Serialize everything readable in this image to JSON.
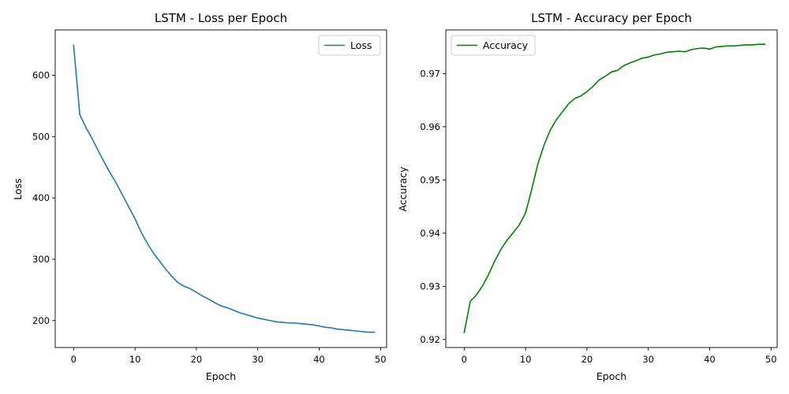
{
  "chart_data": [
    {
      "type": "line",
      "title": "LSTM - Loss per Epoch",
      "xlabel": "Epoch",
      "ylabel": "Loss",
      "xlim": [
        -3,
        51
      ],
      "ylim": [
        156,
        674
      ],
      "xticks": [
        0,
        10,
        20,
        30,
        40,
        50
      ],
      "yticks": [
        200,
        300,
        400,
        500,
        600
      ],
      "ytick_labels": [
        "200",
        "300",
        "400",
        "500",
        "600"
      ],
      "grid": false,
      "legend_position": "upper right",
      "series": [
        {
          "name": "Loss",
          "color": "#1f77b4",
          "x": [
            0,
            1,
            2,
            3,
            4,
            5,
            6,
            7,
            8,
            9,
            10,
            11,
            12,
            13,
            14,
            15,
            16,
            17,
            18,
            19,
            20,
            21,
            22,
            23,
            24,
            25,
            26,
            27,
            28,
            29,
            30,
            31,
            32,
            33,
            34,
            35,
            36,
            37,
            38,
            39,
            40,
            41,
            42,
            43,
            44,
            45,
            46,
            47,
            48,
            49
          ],
          "values": [
            649,
            536,
            515,
            497,
            477,
            458,
            440,
            423,
            404,
            385,
            366,
            344,
            326,
            310,
            297,
            284,
            272,
            262,
            256,
            252,
            246,
            240,
            235,
            229,
            224,
            221,
            217,
            213,
            210,
            207,
            204,
            202,
            200,
            198,
            197,
            196,
            196,
            195,
            194,
            193,
            191,
            189,
            188,
            186,
            185,
            184,
            183,
            182,
            181,
            181
          ]
        }
      ]
    },
    {
      "type": "line",
      "title": "LSTM - Accuracy per Epoch",
      "xlabel": "Epoch",
      "ylabel": "Accuracy",
      "xlim": [
        -3,
        51
      ],
      "ylim": [
        0.9185,
        0.9782
      ],
      "xticks": [
        0,
        10,
        20,
        30,
        40,
        50
      ],
      "yticks": [
        0.92,
        0.93,
        0.94,
        0.95,
        0.96,
        0.97
      ],
      "ytick_labels": [
        "0.92",
        "0.93",
        "0.94",
        "0.95",
        "0.96",
        "0.97"
      ],
      "grid": false,
      "legend_position": "upper left",
      "series": [
        {
          "name": "Accuracy",
          "color": "#008000",
          "x": [
            0,
            1,
            2,
            3,
            4,
            5,
            6,
            7,
            8,
            9,
            10,
            11,
            12,
            13,
            14,
            15,
            16,
            17,
            18,
            19,
            20,
            21,
            22,
            23,
            24,
            25,
            26,
            27,
            28,
            29,
            30,
            31,
            32,
            33,
            34,
            35,
            36,
            37,
            38,
            39,
            40,
            41,
            42,
            43,
            44,
            45,
            46,
            47,
            48,
            49
          ],
          "values": [
            0.9213,
            0.9272,
            0.9284,
            0.9301,
            0.9323,
            0.9348,
            0.937,
            0.9387,
            0.9401,
            0.9416,
            0.9438,
            0.9482,
            0.953,
            0.9565,
            0.9593,
            0.9613,
            0.9628,
            0.9643,
            0.9653,
            0.9658,
            0.9666,
            0.9676,
            0.9688,
            0.9695,
            0.9703,
            0.9706,
            0.9715,
            0.972,
            0.9724,
            0.9729,
            0.9731,
            0.9735,
            0.9737,
            0.974,
            0.9741,
            0.9742,
            0.9741,
            0.9745,
            0.9747,
            0.9748,
            0.9746,
            0.975,
            0.9751,
            0.9752,
            0.9752,
            0.9753,
            0.9754,
            0.9754,
            0.9755,
            0.9755
          ]
        }
      ]
    }
  ]
}
